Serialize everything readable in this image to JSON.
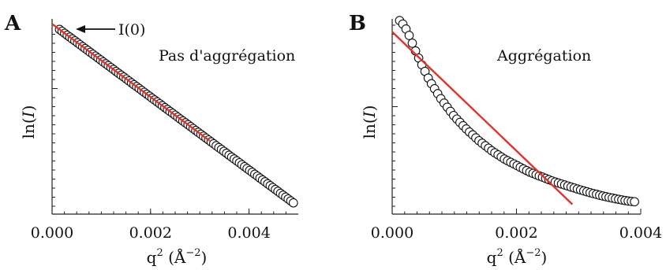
{
  "chart_data": [
    {
      "type": "scatter",
      "panel": "A",
      "annotation": "Pas d'aggrégation",
      "arrow_label": "I(0)",
      "xlabel": "q",
      "xlabel_sup": "2",
      "xlabel_unit": " (Å",
      "xlabel_unit_sup": "−2",
      "xlabel_close": ")",
      "ylabel": "ln(",
      "ylabel_italic": "I",
      "ylabel_close": ")",
      "xlim": [
        0.0,
        0.005
      ],
      "ylim": [
        -5.6,
        0.15
      ],
      "xticks": [
        0.0,
        0.002,
        0.004
      ],
      "xtick_labels": [
        "0.000",
        "0.002",
        "0.004"
      ],
      "series_points": {
        "x_start": 0.00015,
        "x_end": 0.0049,
        "count": 92,
        "ln_I0": 0.0,
        "slope": -1075,
        "curvature": -12000
      },
      "fit_line": {
        "x": [
          0.0,
          0.0032
        ],
        "y": [
          0.0,
          -3.44
        ]
      }
    },
    {
      "type": "scatter",
      "panel": "B",
      "annotation": "Aggrégation",
      "xlabel": "q",
      "xlabel_sup": "2",
      "xlabel_unit": " (Å",
      "xlabel_unit_sup": "−2",
      "xlabel_close": ")",
      "ylabel": "ln(",
      "ylabel_italic": "I",
      "ylabel_close": ")",
      "xlim": [
        0.0,
        0.004
      ],
      "ylim": [
        -5.6,
        0.4
      ],
      "xticks": [
        0.0,
        0.002,
        0.004
      ],
      "xtick_labels": [
        "0.000",
        "0.002",
        "0.004"
      ],
      "series_points": {
        "x": [
          0.00012,
          0.00018,
          0.00025,
          0.0004,
          0.0006,
          0.0008,
          0.001,
          0.0012,
          0.0014,
          0.0016,
          0.0018,
          0.002,
          0.0022,
          0.0024,
          0.0026,
          0.0028,
          0.003,
          0.0032,
          0.0034,
          0.0036,
          0.0038,
          0.0039
        ],
        "y": [
          0.35,
          0.22,
          0.0,
          -0.7,
          -1.5,
          -2.1,
          -2.6,
          -3.0,
          -3.35,
          -3.65,
          -3.9,
          -4.1,
          -4.3,
          -4.45,
          -4.6,
          -4.72,
          -4.84,
          -4.95,
          -5.05,
          -5.13,
          -5.2,
          -5.22
        ],
        "count": 75
      },
      "fit_line": {
        "x": [
          0.0,
          0.0029
        ],
        "y": [
          0.0,
          -5.3
        ]
      }
    }
  ]
}
